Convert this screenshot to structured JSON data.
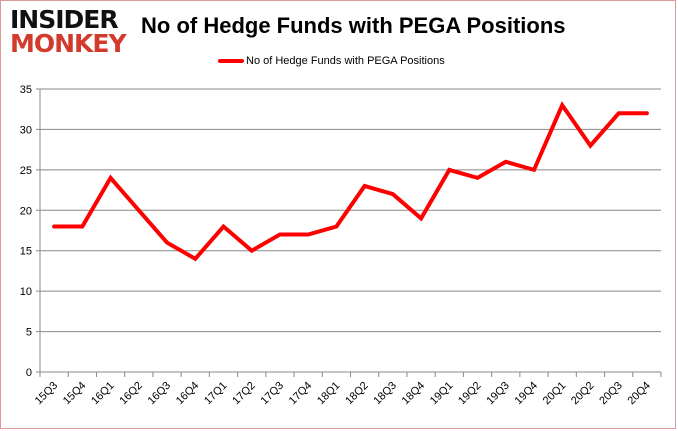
{
  "logo": {
    "line1": "INSIDER",
    "line2": "MONKEY"
  },
  "chart_data": {
    "type": "line",
    "title": "No of Hedge Funds with PEGA Positions",
    "xlabel": "",
    "ylabel": "",
    "categories": [
      "15Q3",
      "15Q4",
      "16Q1",
      "16Q2",
      "16Q3",
      "16Q4",
      "17Q1",
      "17Q2",
      "17Q3",
      "17Q4",
      "18Q1",
      "18Q2",
      "18Q3",
      "18Q4",
      "19Q1",
      "19Q2",
      "19Q3",
      "19Q4",
      "20Q1",
      "20Q2",
      "20Q3",
      "20Q4"
    ],
    "series": [
      {
        "name": "No of Hedge Funds with PEGA Positions",
        "color": "#ff0000",
        "values": [
          18,
          18,
          24,
          20,
          16,
          14,
          18,
          15,
          17,
          17,
          18,
          23,
          22,
          19,
          25,
          24,
          26,
          25,
          33,
          28,
          32,
          32
        ]
      }
    ],
    "ylim": [
      0,
      35
    ],
    "yticks": [
      0,
      5,
      10,
      15,
      20,
      25,
      30,
      35
    ],
    "grid": true,
    "legend": "top"
  }
}
